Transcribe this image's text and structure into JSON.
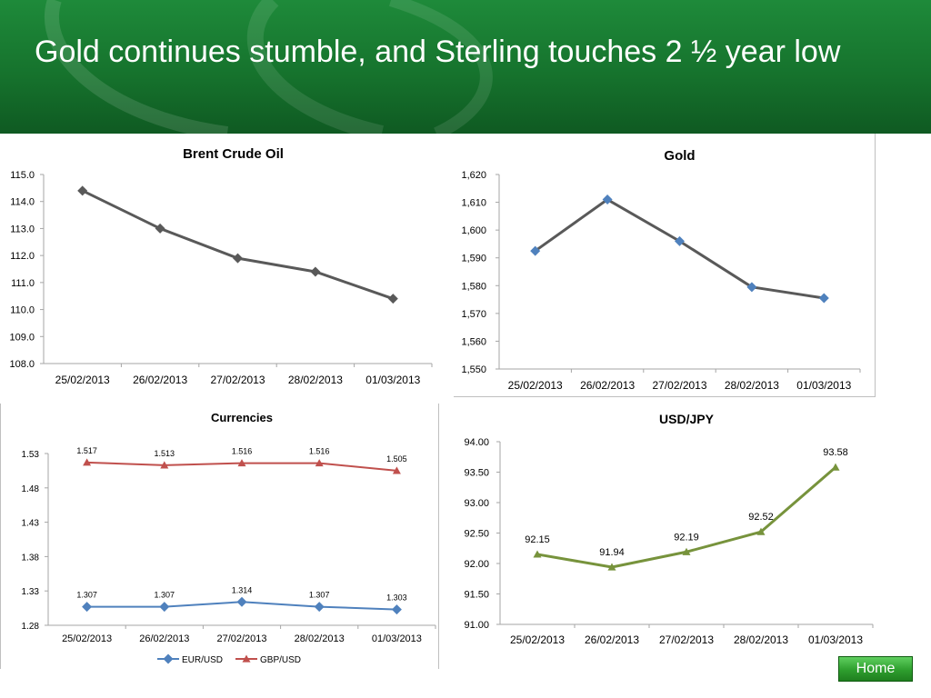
{
  "slide": {
    "title": "Gold continues stumble, and Sterling touches 2 ½ year low",
    "home_label": "Home",
    "colors": {
      "header_green": "#16732d",
      "dark_line": "#595959",
      "gold_marker": "#4f81bd",
      "eur_blue": "#4f81bd",
      "gbp_red": "#c0504d",
      "jpy_green": "#77933c"
    }
  },
  "chart_data": [
    {
      "id": "brent",
      "type": "line",
      "title": "Brent Crude Oil",
      "categories": [
        "25/02/2013",
        "26/02/2013",
        "27/02/2013",
        "28/02/2013",
        "01/03/2013"
      ],
      "series": [
        {
          "values": [
            114.4,
            113.0,
            111.9,
            111.4,
            110.4
          ],
          "color": "#595959",
          "marker": "diamond",
          "marker_color": "#595959"
        }
      ],
      "ylim": [
        108.0,
        115.0
      ],
      "yticks": [
        "108.0",
        "109.0",
        "110.0",
        "111.0",
        "112.0",
        "113.0",
        "114.0",
        "115.0"
      ],
      "grid": false,
      "legend": "none"
    },
    {
      "id": "gold",
      "type": "line",
      "title": "Gold",
      "categories": [
        "25/02/2013",
        "26/02/2013",
        "27/02/2013",
        "28/02/2013",
        "01/03/2013"
      ],
      "series": [
        {
          "values": [
            1592.5,
            1611,
            1596,
            1579.5,
            1575.5
          ],
          "color": "#595959",
          "marker": "diamond",
          "marker_color": "#4f81bd"
        }
      ],
      "ylim": [
        1550,
        1620
      ],
      "yticks": [
        "1,550",
        "1,560",
        "1,570",
        "1,580",
        "1,590",
        "1,600",
        "1,610",
        "1,620"
      ],
      "grid": false,
      "legend": "none"
    },
    {
      "id": "currencies",
      "type": "line",
      "title": "Currencies",
      "categories": [
        "25/02/2013",
        "26/02/2013",
        "27/02/2013",
        "28/02/2013",
        "01/03/2013"
      ],
      "series": [
        {
          "name": "EUR/USD",
          "values": [
            1.307,
            1.307,
            1.314,
            1.307,
            1.303
          ],
          "labels": [
            "1.307",
            "1.307",
            "1.314",
            "1.307",
            "1.303"
          ],
          "color": "#4f81bd",
          "marker": "diamond",
          "marker_color": "#4f81bd"
        },
        {
          "name": "GBP/USD",
          "values": [
            1.517,
            1.513,
            1.516,
            1.516,
            1.505
          ],
          "labels": [
            "1.517",
            "1.513",
            "1.516",
            "1.516",
            "1.505"
          ],
          "color": "#c0504d",
          "marker": "triangle",
          "marker_color": "#c0504d"
        }
      ],
      "ylim": [
        1.28,
        1.53
      ],
      "yticks": [
        "1.28",
        "1.33",
        "1.38",
        "1.43",
        "1.48",
        "1.53"
      ],
      "grid": false,
      "legend": "bottom"
    },
    {
      "id": "usdjpy",
      "type": "line",
      "title": "USD/JPY",
      "categories": [
        "25/02/2013",
        "26/02/2013",
        "27/02/2013",
        "28/02/2013",
        "01/03/2013"
      ],
      "series": [
        {
          "values": [
            92.15,
            91.94,
            92.19,
            92.52,
            93.58
          ],
          "labels": [
            "92.15",
            "91.94",
            "92.19",
            "92.52",
            "93.58"
          ],
          "color": "#77933c",
          "marker": "triangle",
          "marker_color": "#77933c"
        }
      ],
      "ylim": [
        91.0,
        94.0
      ],
      "yticks": [
        "91.00",
        "91.50",
        "92.00",
        "92.50",
        "93.00",
        "93.50",
        "94.00"
      ],
      "grid": false,
      "legend": "none"
    }
  ]
}
